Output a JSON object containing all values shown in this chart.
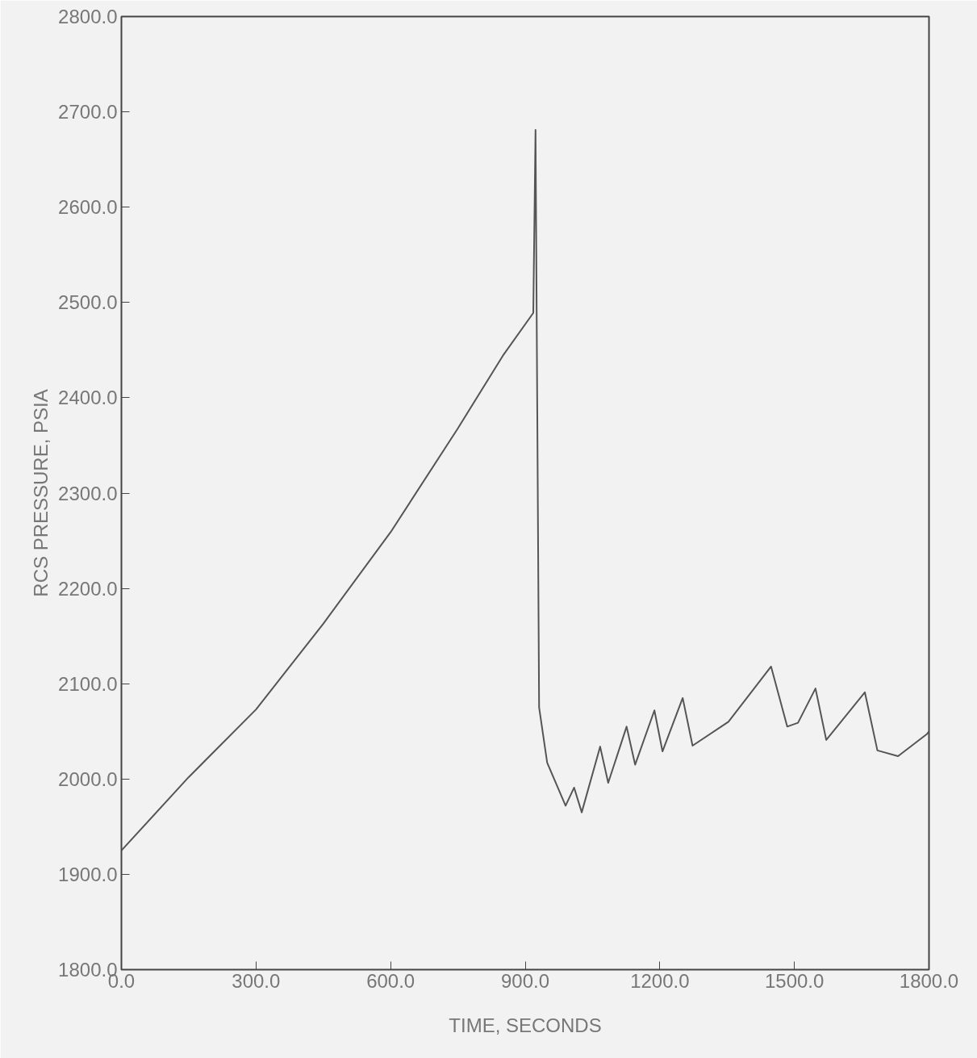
{
  "chart_data": {
    "type": "line",
    "xlabel": "TIME, SECONDS",
    "ylabel": "RCS PRESSURE, PSIA",
    "x": [
      0,
      150,
      300,
      450,
      600,
      750,
      850,
      918,
      923,
      931,
      949,
      990,
      1009,
      1026,
      1067,
      1085,
      1126,
      1145,
      1188,
      1206,
      1251,
      1273,
      1353,
      1448,
      1484,
      1508,
      1547,
      1571,
      1657,
      1685,
      1731,
      1795,
      1800
    ],
    "series": [
      {
        "color": "#555555",
        "values": [
          1925,
          2002,
          2073,
          2163,
          2259,
          2368,
          2444,
          2489,
          2681,
          2075,
          2017,
          1972,
          1991,
          1965,
          2034,
          1996,
          2055,
          2015,
          2072,
          2029,
          2085,
          2035,
          2060,
          2118,
          2055,
          2059,
          2095,
          2041,
          2091,
          2030,
          2024,
          2047,
          2050
        ]
      }
    ],
    "xlim": [
      0,
      1800
    ],
    "ylim": [
      1800,
      2800
    ],
    "xticks": [
      {
        "value": 0,
        "label": "0.0"
      },
      {
        "value": 300,
        "label": "300.0"
      },
      {
        "value": 600,
        "label": "600.0"
      },
      {
        "value": 900,
        "label": "900.0"
      },
      {
        "value": 1200,
        "label": "1200.0"
      },
      {
        "value": 1500,
        "label": "1500.0"
      },
      {
        "value": 1800,
        "label": "1800.0"
      }
    ],
    "yticks": [
      {
        "value": 1800,
        "label": "1800.0"
      },
      {
        "value": 1900,
        "label": "1900.0"
      },
      {
        "value": 2000,
        "label": "2000.0"
      },
      {
        "value": 2100,
        "label": "2100.0"
      },
      {
        "value": 2200,
        "label": "2200.0"
      },
      {
        "value": 2300,
        "label": "2300.0"
      },
      {
        "value": 2400,
        "label": "2400.0"
      },
      {
        "value": 2500,
        "label": "2500.0"
      },
      {
        "value": 2600,
        "label": "2600.0"
      },
      {
        "value": 2700,
        "label": "2700.0"
      },
      {
        "value": 2800,
        "label": "2800.0"
      }
    ],
    "grid": false,
    "marker": "none",
    "line_style": "solid"
  }
}
